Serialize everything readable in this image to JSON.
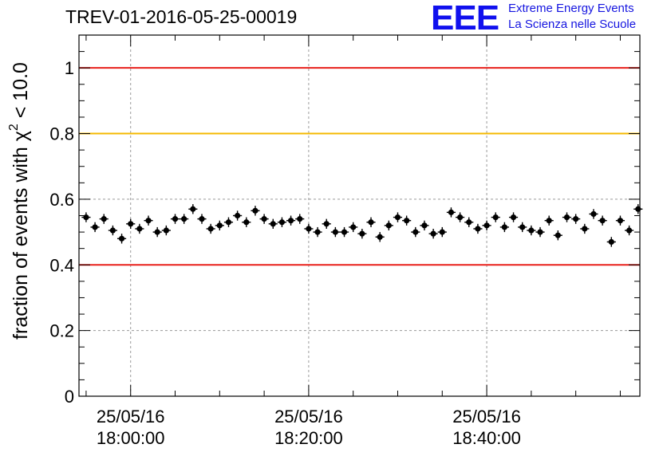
{
  "title": "TREV-01-2016-05-25-00019",
  "logo": {
    "mark": "EEE",
    "line1": "Extreme Energy Events",
    "line2": "La Scienza nelle Scuole"
  },
  "chart_data": {
    "type": "scatter",
    "title": "TREV-01-2016-05-25-00019",
    "ylabel_parts": [
      "fraction of events with ",
      "χ",
      "2",
      " < 10.0"
    ],
    "xlabel": "",
    "ylim": [
      0,
      1.1
    ],
    "xlim_minutes": [
      -5.8,
      57.2
    ],
    "x_axis_note": "time axis; minutes measured from 25/05/16 18:00:00",
    "yticks": [
      0,
      0.2,
      0.4,
      0.6,
      0.8,
      1
    ],
    "ytick_labels": [
      "0",
      "0.2",
      "0.4",
      "0.6",
      "0.8",
      "1"
    ],
    "xticks": [
      {
        "minutes": 0,
        "date": "25/05/16",
        "time": "18:00:00"
      },
      {
        "minutes": 20,
        "date": "25/05/16",
        "time": "18:20:00"
      },
      {
        "minutes": 40,
        "date": "25/05/16",
        "time": "18:40:00"
      }
    ],
    "reference_lines": [
      {
        "y": 1.0,
        "color": "#e8201c"
      },
      {
        "y": 0.8,
        "color": "#f5b800"
      },
      {
        "y": 0.4,
        "color": "#e8201c"
      }
    ],
    "grid": true,
    "bin_width_minutes": 1,
    "y_error": 0.015,
    "points_x_start_minutes": -5,
    "values": [
      0.545,
      0.515,
      0.54,
      0.505,
      0.48,
      0.525,
      0.51,
      0.535,
      0.5,
      0.505,
      0.54,
      0.54,
      0.57,
      0.54,
      0.51,
      0.52,
      0.53,
      0.55,
      0.53,
      0.565,
      0.54,
      0.525,
      0.53,
      0.535,
      0.54,
      0.51,
      0.5,
      0.525,
      0.5,
      0.5,
      0.515,
      0.495,
      0.53,
      0.485,
      0.52,
      0.545,
      0.535,
      0.5,
      0.52,
      0.495,
      0.5,
      0.56,
      0.545,
      0.53,
      0.51,
      0.52,
      0.545,
      0.515,
      0.545,
      0.515,
      0.505,
      0.5,
      0.535,
      0.49,
      0.545,
      0.54,
      0.51,
      0.555,
      0.535,
      0.47,
      0.535,
      0.505,
      0.57
    ]
  }
}
